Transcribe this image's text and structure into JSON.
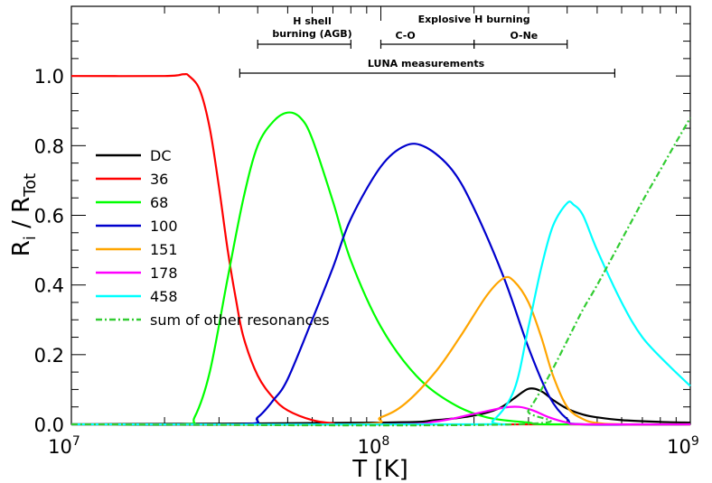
{
  "chart_data": {
    "type": "line",
    "title": "",
    "xlabel": "T [K]",
    "ylabel": "R_i / R_Tot",
    "xscale": "log",
    "xlim": [
      10000000,
      1000000000
    ],
    "ylim": [
      0,
      1.2
    ],
    "xticks": [
      {
        "value": 10000000,
        "base": "10",
        "exp": "7"
      },
      {
        "value": 100000000,
        "base": "10",
        "exp": "8"
      },
      {
        "value": 1000000000,
        "base": "10",
        "exp": "9"
      }
    ],
    "yticks": [
      {
        "value": 0.0,
        "label": "0.0"
      },
      {
        "value": 0.2,
        "label": "0.2"
      },
      {
        "value": 0.4,
        "label": "0.4"
      },
      {
        "value": 0.6,
        "label": "0.6"
      },
      {
        "value": 0.8,
        "label": "0.8"
      },
      {
        "value": 1.0,
        "label": "1.0"
      }
    ],
    "legend_position": "left",
    "series": [
      {
        "name": "DC",
        "color": "#000000",
        "dash": "",
        "points": [
          [
            10000000,
            0
          ],
          [
            100000000,
            0.005
          ],
          [
            150000000,
            0.012
          ],
          [
            200000000,
            0.025
          ],
          [
            240000000,
            0.045
          ],
          [
            270000000,
            0.075
          ],
          [
            300000000,
            0.102
          ],
          [
            330000000,
            0.095
          ],
          [
            360000000,
            0.07
          ],
          [
            400000000,
            0.045
          ],
          [
            450000000,
            0.028
          ],
          [
            500000000,
            0.02
          ],
          [
            600000000,
            0.012
          ],
          [
            800000000,
            0.007
          ],
          [
            1000000000,
            0.005
          ]
        ]
      },
      {
        "name": "36",
        "color": "#ff0000",
        "dash": "",
        "points": [
          [
            10000000,
            1.0
          ],
          [
            20000000,
            1.0
          ],
          [
            23000000,
            1.005
          ],
          [
            24000000,
            1.0
          ],
          [
            26000000,
            0.96
          ],
          [
            28000000,
            0.85
          ],
          [
            30000000,
            0.68
          ],
          [
            32000000,
            0.5
          ],
          [
            34000000,
            0.36
          ],
          [
            36000000,
            0.25
          ],
          [
            40000000,
            0.14
          ],
          [
            45000000,
            0.075
          ],
          [
            50000000,
            0.04
          ],
          [
            60000000,
            0.012
          ],
          [
            70000000,
            0.003
          ],
          [
            80000000,
            0
          ],
          [
            1000000000,
            0
          ]
        ]
      },
      {
        "name": "68",
        "color": "#00ff00",
        "dash": "",
        "points": [
          [
            10000000,
            0
          ],
          [
            23000000,
            0
          ],
          [
            25000000,
            0.02
          ],
          [
            28000000,
            0.15
          ],
          [
            32000000,
            0.42
          ],
          [
            36000000,
            0.65
          ],
          [
            40000000,
            0.8
          ],
          [
            45000000,
            0.87
          ],
          [
            50000000,
            0.895
          ],
          [
            55000000,
            0.88
          ],
          [
            60000000,
            0.82
          ],
          [
            70000000,
            0.64
          ],
          [
            80000000,
            0.47
          ],
          [
            100000000,
            0.28
          ],
          [
            130000000,
            0.14
          ],
          [
            170000000,
            0.06
          ],
          [
            220000000,
            0.02
          ],
          [
            300000000,
            0.005
          ],
          [
            350000000,
            0
          ],
          [
            1000000000,
            0
          ]
        ]
      },
      {
        "name": "100",
        "color": "#0000cd",
        "dash": "",
        "points": [
          [
            10000000,
            0
          ],
          [
            35000000,
            0
          ],
          [
            40000000,
            0.02
          ],
          [
            45000000,
            0.07
          ],
          [
            50000000,
            0.13
          ],
          [
            60000000,
            0.3
          ],
          [
            70000000,
            0.45
          ],
          [
            80000000,
            0.59
          ],
          [
            100000000,
            0.74
          ],
          [
            120000000,
            0.8
          ],
          [
            140000000,
            0.795
          ],
          [
            170000000,
            0.73
          ],
          [
            200000000,
            0.62
          ],
          [
            250000000,
            0.42
          ],
          [
            300000000,
            0.22
          ],
          [
            350000000,
            0.08
          ],
          [
            400000000,
            0.015
          ],
          [
            450000000,
            0
          ],
          [
            1000000000,
            0
          ]
        ]
      },
      {
        "name": "151",
        "color": "#ffa500",
        "dash": "",
        "points": [
          [
            10000000,
            0
          ],
          [
            80000000,
            0
          ],
          [
            100000000,
            0.02
          ],
          [
            120000000,
            0.06
          ],
          [
            150000000,
            0.15
          ],
          [
            180000000,
            0.25
          ],
          [
            220000000,
            0.37
          ],
          [
            250000000,
            0.42
          ],
          [
            270000000,
            0.41
          ],
          [
            300000000,
            0.35
          ],
          [
            330000000,
            0.25
          ],
          [
            360000000,
            0.14
          ],
          [
            400000000,
            0.05
          ],
          [
            450000000,
            0.015
          ],
          [
            500000000,
            0.004
          ],
          [
            600000000,
            0
          ],
          [
            1000000000,
            0
          ]
        ]
      },
      {
        "name": "178",
        "color": "#ff00ff",
        "dash": "",
        "points": [
          [
            10000000,
            0
          ],
          [
            100000000,
            0
          ],
          [
            150000000,
            0.008
          ],
          [
            200000000,
            0.03
          ],
          [
            250000000,
            0.048
          ],
          [
            280000000,
            0.05
          ],
          [
            310000000,
            0.04
          ],
          [
            350000000,
            0.02
          ],
          [
            400000000,
            0.005
          ],
          [
            450000000,
            0
          ],
          [
            1000000000,
            0
          ]
        ]
      },
      {
        "name": "458",
        "color": "#00ffff",
        "dash": "",
        "points": [
          [
            10000000,
            0
          ],
          [
            200000000,
            0
          ],
          [
            230000000,
            0.01
          ],
          [
            270000000,
            0.1
          ],
          [
            300000000,
            0.28
          ],
          [
            330000000,
            0.45
          ],
          [
            360000000,
            0.57
          ],
          [
            400000000,
            0.635
          ],
          [
            420000000,
            0.63
          ],
          [
            450000000,
            0.6
          ],
          [
            500000000,
            0.5
          ],
          [
            600000000,
            0.35
          ],
          [
            700000000,
            0.25
          ],
          [
            850000000,
            0.17
          ],
          [
            1000000000,
            0.11
          ]
        ]
      },
      {
        "name": "sum of other resonances",
        "color": "#33cc33",
        "dash": "7,3,2,3",
        "points": [
          [
            10000000,
            0
          ],
          [
            270000000,
            0
          ],
          [
            300000000,
            0.04
          ],
          [
            350000000,
            0.14
          ],
          [
            400000000,
            0.24
          ],
          [
            450000000,
            0.33
          ],
          [
            500000000,
            0.4
          ],
          [
            600000000,
            0.53
          ],
          [
            700000000,
            0.64
          ],
          [
            800000000,
            0.73
          ],
          [
            900000000,
            0.81
          ],
          [
            1000000000,
            0.88
          ]
        ]
      }
    ],
    "annotations": [
      {
        "lines": [
          "H shell",
          "burning (AGB)"
        ],
        "range": [
          40000000,
          80000000
        ],
        "text_at": 60000000
      },
      {
        "lines": [
          "Explosive H burning"
        ],
        "range": null,
        "text_at": 200000000,
        "row": "top"
      },
      {
        "lines": [
          "C-O"
        ],
        "range": [
          100000000,
          200000000
        ],
        "text_at": 120000000
      },
      {
        "lines": [
          "O-Ne"
        ],
        "range": [
          200000000,
          400000000
        ],
        "text_at": 290000000
      },
      {
        "lines": [
          "LUNA measurements"
        ],
        "range": [
          35000000,
          570000000
        ],
        "text_at": 140000000
      }
    ]
  }
}
